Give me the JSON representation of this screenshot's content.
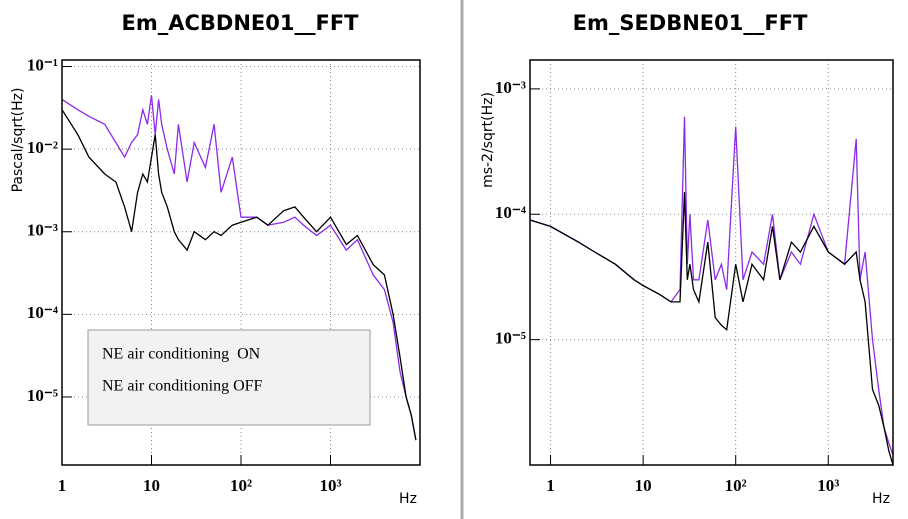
{
  "chart_data": [
    {
      "type": "line",
      "title": "Em_ACBDNE01__FFT",
      "xlabel": "Hz",
      "ylabel": "Pascal/sqrt(Hz)",
      "xlog": true,
      "ylog": true,
      "grid": true,
      "legend": "lower left",
      "xlim": [
        1,
        10000
      ],
      "ylim": [
        1.5e-06,
        0.12
      ],
      "xticks": [
        1,
        10,
        {
          "value": 100,
          "label": "10²"
        },
        {
          "value": 1000,
          "label": "10³"
        }
      ],
      "yticks": [
        {
          "value": 0.1,
          "label": "10⁻¹"
        },
        {
          "value": 0.01,
          "label": "10⁻²"
        },
        {
          "value": 0.001,
          "label": "10⁻³"
        },
        {
          "value": 0.0001,
          "label": "10⁻⁴"
        },
        {
          "value": 1e-05,
          "label": "10⁻⁵"
        }
      ],
      "x": [
        1,
        1.5,
        2,
        3,
        4,
        5,
        6,
        7,
        8,
        9,
        10,
        11,
        12,
        13,
        15,
        18,
        20,
        25,
        30,
        40,
        50,
        60,
        80,
        100,
        150,
        200,
        300,
        400,
        500,
        700,
        1000,
        1500,
        2000,
        3000,
        4000,
        5000,
        6000,
        7000,
        8000,
        9000
      ],
      "series": [
        {
          "name": "NE air conditioning  ON",
          "color": "#8b2be8",
          "values": [
            0.04,
            0.03,
            0.025,
            0.02,
            0.012,
            0.008,
            0.012,
            0.015,
            0.03,
            0.02,
            0.045,
            0.015,
            0.04,
            0.02,
            0.01,
            0.005,
            0.02,
            0.004,
            0.012,
            0.006,
            0.02,
            0.003,
            0.008,
            0.0015,
            0.0015,
            0.0012,
            0.0013,
            0.0015,
            0.0012,
            0.0009,
            0.0012,
            0.0006,
            0.0008,
            0.0003,
            0.0002,
            8e-05,
            2e-05,
            1e-05,
            6e-06,
            3e-06
          ]
        },
        {
          "name": "NE air conditioning OFF",
          "color": "#000000",
          "values": [
            0.03,
            0.015,
            0.008,
            0.005,
            0.004,
            0.002,
            0.001,
            0.003,
            0.005,
            0.004,
            0.008,
            0.015,
            0.005,
            0.003,
            0.002,
            0.001,
            0.0008,
            0.0006,
            0.001,
            0.0008,
            0.001,
            0.0009,
            0.0012,
            0.0013,
            0.0015,
            0.0012,
            0.0018,
            0.002,
            0.0015,
            0.001,
            0.0015,
            0.0007,
            0.0009,
            0.0004,
            0.0003,
            0.0001,
            3e-05,
            1e-05,
            6e-06,
            3e-06
          ]
        }
      ]
    },
    {
      "type": "line",
      "title": "Em_SEDBNE01__FFT",
      "xlabel": "Hz",
      "ylabel": "ms-2/sqrt(Hz)",
      "xlog": true,
      "ylog": true,
      "grid": true,
      "xlim": [
        0.6,
        5000
      ],
      "ylim": [
        1e-06,
        0.0017
      ],
      "xticks": [
        1,
        10,
        {
          "value": 100,
          "label": "10²"
        },
        {
          "value": 1000,
          "label": "10³"
        }
      ],
      "yticks": [
        {
          "value": 0.001,
          "label": "10⁻³"
        },
        {
          "value": 0.0001,
          "label": "10⁻⁴"
        },
        {
          "value": 1e-05,
          "label": "10⁻⁵"
        }
      ],
      "x": [
        0.6,
        1,
        2,
        3,
        5,
        8,
        10,
        15,
        20,
        25,
        28,
        30,
        32,
        35,
        40,
        50,
        60,
        70,
        80,
        100,
        120,
        150,
        200,
        250,
        300,
        400,
        500,
        700,
        1000,
        1500,
        2000,
        2200,
        2500,
        3000,
        3500,
        4000,
        4500,
        5000
      ],
      "series": [
        {
          "color": "#8b2be8",
          "values": [
            9e-05,
            8e-05,
            6e-05,
            5e-05,
            4e-05,
            3e-05,
            2.7e-05,
            2.3e-05,
            2e-05,
            2.5e-05,
            0.0006,
            4e-05,
            0.0001,
            3e-05,
            3e-05,
            9e-05,
            3e-05,
            4e-05,
            2.5e-05,
            0.0005,
            3e-05,
            5e-05,
            4e-05,
            0.0001,
            3e-05,
            5e-05,
            4e-05,
            0.0001,
            5e-05,
            4e-05,
            0.0004,
            3e-05,
            5e-05,
            1e-05,
            4e-06,
            2e-06,
            1.5e-06,
            1.2e-06
          ]
        },
        {
          "color": "#000000",
          "values": [
            9e-05,
            8e-05,
            6e-05,
            5e-05,
            4e-05,
            3e-05,
            2.7e-05,
            2.3e-05,
            2e-05,
            2e-05,
            0.00015,
            3e-05,
            4e-05,
            2.5e-05,
            2e-05,
            6e-05,
            1.5e-05,
            1.3e-05,
            1.2e-05,
            4e-05,
            2e-05,
            4e-05,
            3e-05,
            8e-05,
            3e-05,
            6e-05,
            5e-05,
            8e-05,
            5e-05,
            4e-05,
            5e-05,
            3e-05,
            2e-05,
            4e-06,
            3e-06,
            2e-06,
            1.3e-06,
            1e-06
          ]
        }
      ]
    }
  ]
}
